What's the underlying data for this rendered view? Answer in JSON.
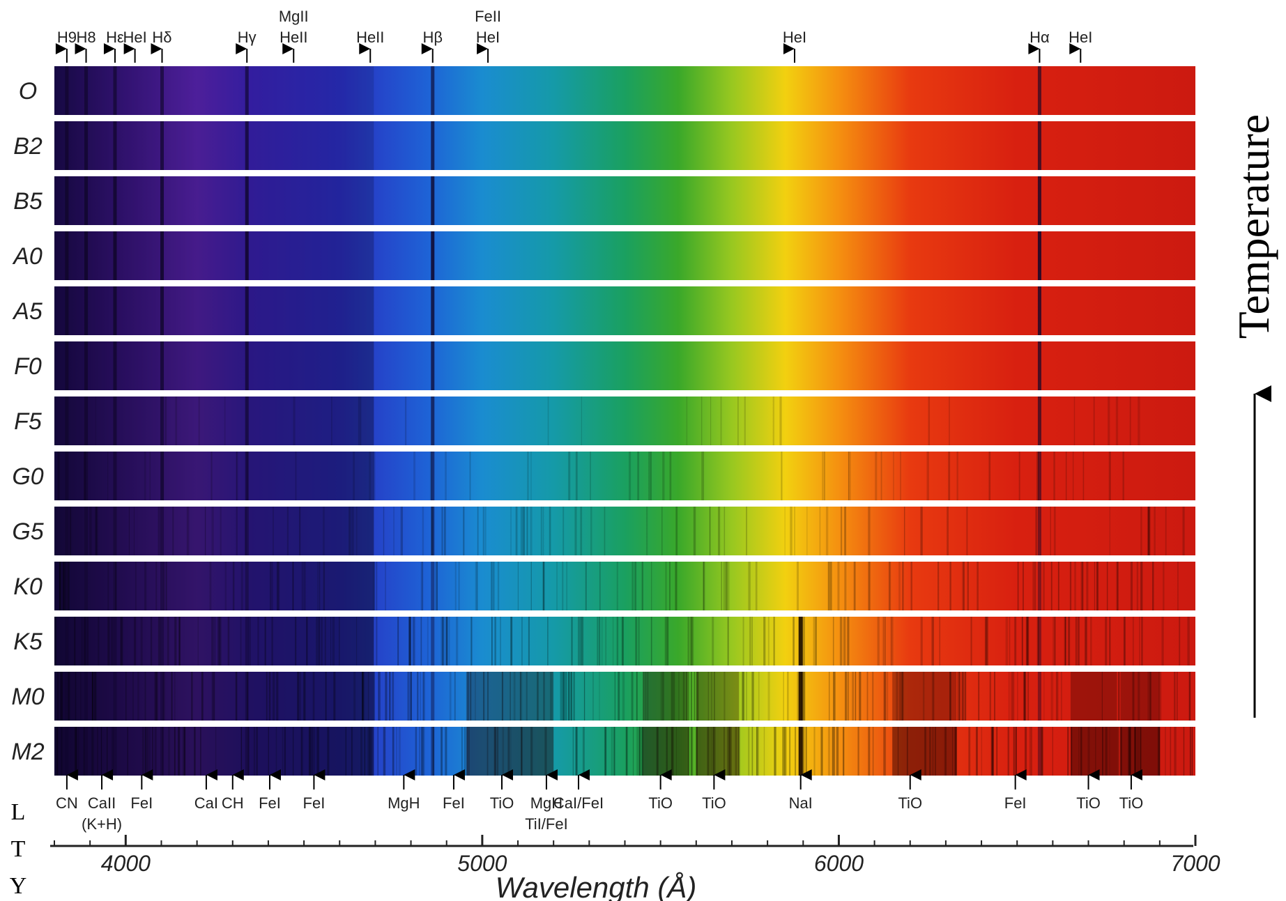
{
  "chart_data": {
    "type": "spectrum",
    "x_axis": {
      "label": "Wavelength (Å)",
      "range": [
        3800,
        7000
      ],
      "major_ticks": [
        4000,
        5000,
        6000,
        7000
      ],
      "minor_tick_step": 100
    },
    "spectral_classes": [
      "O",
      "B2",
      "B5",
      "A0",
      "A5",
      "F0",
      "F5",
      "G0",
      "G5",
      "K0",
      "K5",
      "M0",
      "M2"
    ],
    "temperature_label": "Temperature",
    "side_letters": [
      "L",
      "T",
      "Y"
    ],
    "spectrum_colors": [
      {
        "wl": 3800,
        "color": "#1a0a4a"
      },
      {
        "wl": 4000,
        "color": "#3a1580"
      },
      {
        "wl": 4200,
        "color": "#5a24b0"
      },
      {
        "wl": 4350,
        "color": "#3b22b5"
      },
      {
        "wl": 4600,
        "color": "#2a2ec0"
      },
      {
        "wl": 4850,
        "color": "#1e63d6"
      },
      {
        "wl": 5000,
        "color": "#1a8cd0"
      },
      {
        "wl": 5200,
        "color": "#159aa8"
      },
      {
        "wl": 5400,
        "color": "#1aa060"
      },
      {
        "wl": 5550,
        "color": "#3aa82a"
      },
      {
        "wl": 5700,
        "color": "#98c820"
      },
      {
        "wl": 5850,
        "color": "#f2d010"
      },
      {
        "wl": 6000,
        "color": "#f59010"
      },
      {
        "wl": 6200,
        "color": "#e83a10"
      },
      {
        "wl": 6500,
        "color": "#d82010"
      },
      {
        "wl": 7000,
        "color": "#cc1a10"
      }
    ],
    "top_lines": [
      {
        "wl": 3835,
        "label": "H9"
      },
      {
        "wl": 3889,
        "label": "H8"
      },
      {
        "wl": 3970,
        "label": "Hε"
      },
      {
        "wl": 4026,
        "label": "HeI"
      },
      {
        "wl": 4102,
        "label": "Hδ"
      },
      {
        "wl": 4340,
        "label": "Hγ"
      },
      {
        "wl": 4471,
        "label": "HeII",
        "label2": "MgII"
      },
      {
        "wl": 4686,
        "label": "HeII"
      },
      {
        "wl": 4861,
        "label": "Hβ"
      },
      {
        "wl": 5016,
        "label": "HeI",
        "label2": "FeII"
      },
      {
        "wl": 5876,
        "label": "HeI"
      },
      {
        "wl": 6563,
        "label": "Hα"
      },
      {
        "wl": 6678,
        "label": "HeI"
      }
    ],
    "bottom_lines": [
      {
        "wl": 3835,
        "label": "CN"
      },
      {
        "wl": 3933,
        "label": "CaII",
        "label2": "(K+H)"
      },
      {
        "wl": 4045,
        "label": "FeI"
      },
      {
        "wl": 4226,
        "label": "CaI"
      },
      {
        "wl": 4300,
        "label": "CH"
      },
      {
        "wl": 4404,
        "label": "FeI"
      },
      {
        "wl": 4528,
        "label": "FeI"
      },
      {
        "wl": 4780,
        "label": "MgH"
      },
      {
        "wl": 4920,
        "label": "FeI"
      },
      {
        "wl": 5055,
        "label": "TiO"
      },
      {
        "wl": 5180,
        "label": "MgH",
        "label2": "TiI/FeI"
      },
      {
        "wl": 5270,
        "label": "CaI/FeI"
      },
      {
        "wl": 5500,
        "label": "TiO"
      },
      {
        "wl": 5650,
        "label": "TiO"
      },
      {
        "wl": 5893,
        "label": "NaI"
      },
      {
        "wl": 6200,
        "label": "TiO"
      },
      {
        "wl": 6495,
        "label": "FeI"
      },
      {
        "wl": 6700,
        "label": "TiO"
      },
      {
        "wl": 6820,
        "label": "TiO"
      }
    ]
  }
}
